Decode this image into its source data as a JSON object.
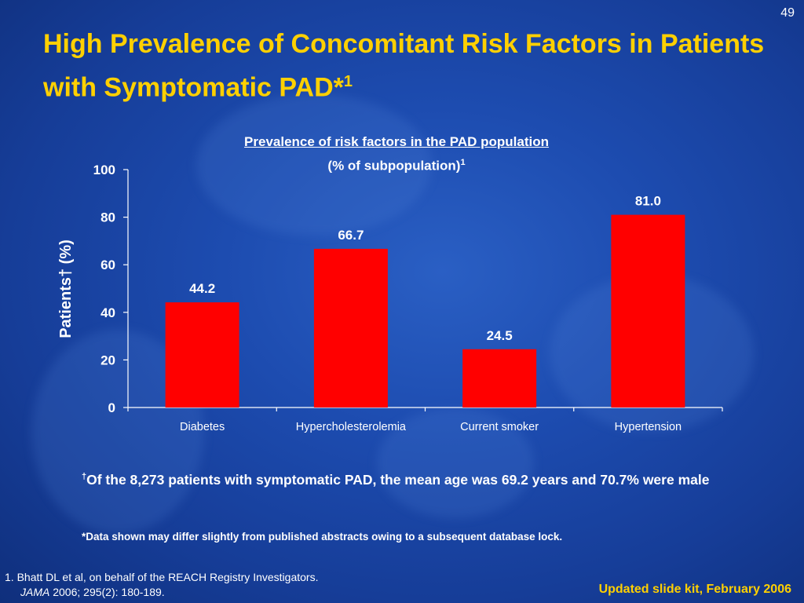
{
  "slide": {
    "page_number": "49",
    "title_text": "High Prevalence of Concomitant Risk Factors in Patients with Symptomatic PAD*",
    "title_sup": "1",
    "footnote_mark": "†",
    "footnote_text": "Of the 8,273 patients with symptomatic PAD, the mean age was 69.2 years and 70.7% were male",
    "note": "*Data shown may differ slightly from published abstracts owing to a subsequent database lock.",
    "reference_line1": "1. Bhatt DL et al, on behalf of the REACH Registry Investigators.",
    "reference_journal": "JAMA",
    "reference_line2_rest": " 2006; 295(2): 180-189.",
    "updated": "Updated slide kit, February 2006"
  },
  "colors": {
    "bar": "#ff0000",
    "title_yellow": "#ffd000",
    "text": "#ffffff"
  },
  "chart_data": {
    "type": "bar",
    "title": "Prevalence of risk factors in the PAD population",
    "subtitle": "(% of subpopulation)",
    "subtitle_sup": "1",
    "ylabel": "Patients† (%)",
    "categories": [
      "Diabetes",
      "Hypercholesterolemia",
      "Current smoker",
      "Hypertension"
    ],
    "values": [
      44.2,
      66.7,
      24.5,
      81.0
    ],
    "value_labels": [
      "44.2",
      "66.7",
      "24.5",
      "81.0"
    ],
    "ylim": [
      0,
      100
    ],
    "yticks": [
      0,
      20,
      40,
      60,
      80,
      100
    ],
    "grid": false,
    "legend": "none"
  }
}
